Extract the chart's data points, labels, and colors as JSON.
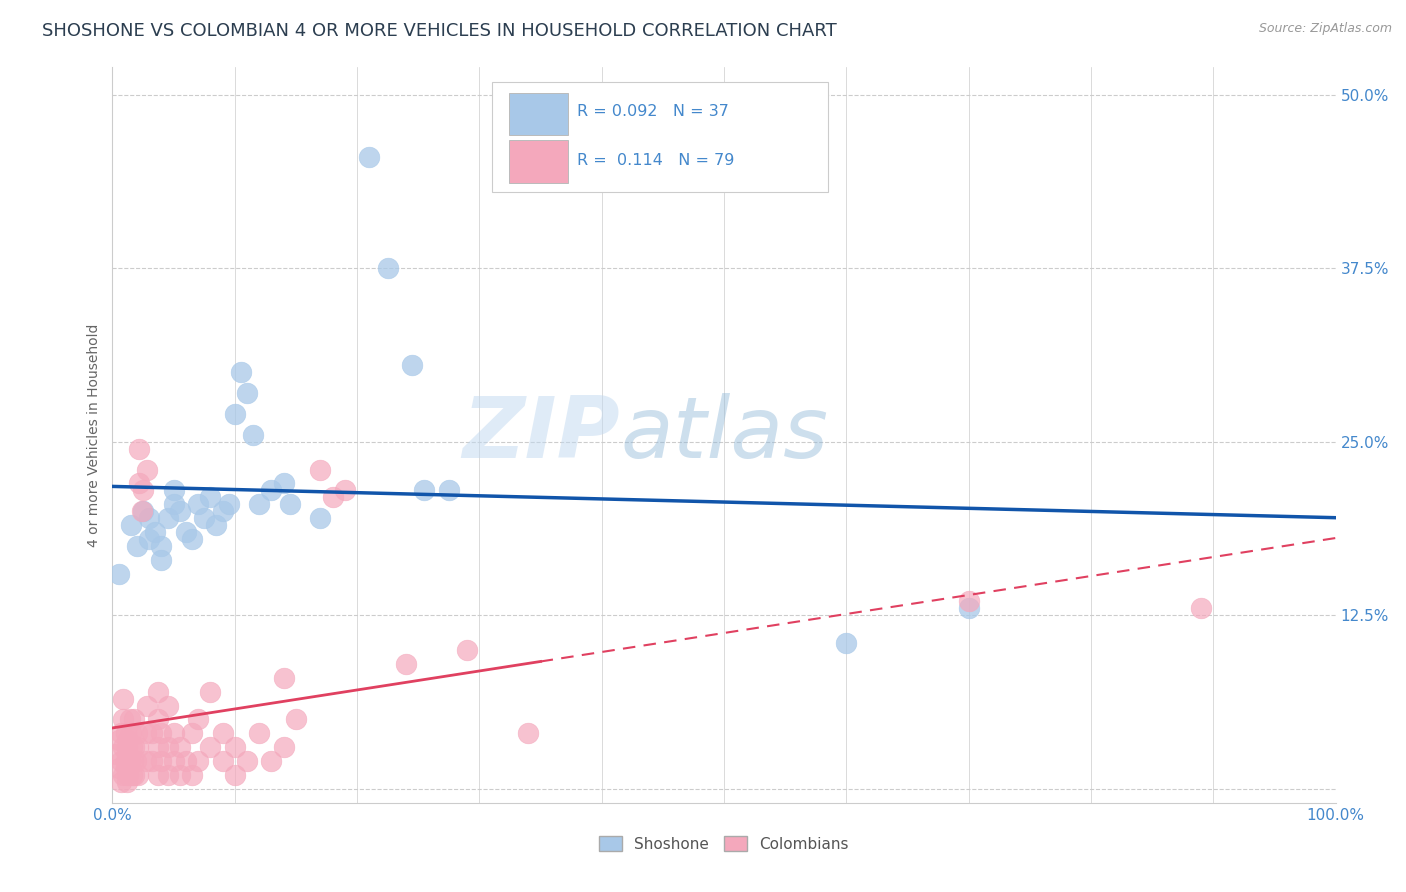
{
  "title": "SHOSHONE VS COLOMBIAN 4 OR MORE VEHICLES IN HOUSEHOLD CORRELATION CHART",
  "source": "Source: ZipAtlas.com",
  "ylabel": "4 or more Vehicles in Household",
  "xlabel": "",
  "xlim": [
    0.0,
    1.0
  ],
  "ylim": [
    -0.01,
    0.52
  ],
  "ytick_vals": [
    0.0,
    0.125,
    0.25,
    0.375,
    0.5
  ],
  "ytick_labels": [
    "",
    "12.5%",
    "25.0%",
    "37.5%",
    "50.0%"
  ],
  "xtick_vals": [
    0.0,
    0.1,
    0.2,
    0.3,
    0.4,
    0.5,
    0.6,
    0.7,
    0.8,
    0.9,
    1.0
  ],
  "xtick_labels": [
    "0.0%",
    "",
    "",
    "",
    "",
    "",
    "",
    "",
    "",
    "",
    "100.0%"
  ],
  "shoshone_color": "#a8c8e8",
  "colombian_color": "#f4a8bc",
  "line_shoshone_color": "#1155aa",
  "line_colombian_color": "#e04060",
  "tick_label_color": "#4488cc",
  "background_color": "#ffffff",
  "grid_color": "#cccccc",
  "watermark_zip": "ZIP",
  "watermark_atlas": "atlas",
  "shoshone_points": [
    [
      0.005,
      0.155
    ],
    [
      0.015,
      0.19
    ],
    [
      0.02,
      0.175
    ],
    [
      0.025,
      0.2
    ],
    [
      0.03,
      0.195
    ],
    [
      0.03,
      0.18
    ],
    [
      0.035,
      0.185
    ],
    [
      0.04,
      0.175
    ],
    [
      0.04,
      0.165
    ],
    [
      0.045,
      0.195
    ],
    [
      0.05,
      0.215
    ],
    [
      0.05,
      0.205
    ],
    [
      0.055,
      0.2
    ],
    [
      0.06,
      0.185
    ],
    [
      0.065,
      0.18
    ],
    [
      0.07,
      0.205
    ],
    [
      0.075,
      0.195
    ],
    [
      0.08,
      0.21
    ],
    [
      0.085,
      0.19
    ],
    [
      0.09,
      0.2
    ],
    [
      0.095,
      0.205
    ],
    [
      0.1,
      0.27
    ],
    [
      0.105,
      0.3
    ],
    [
      0.11,
      0.285
    ],
    [
      0.115,
      0.255
    ],
    [
      0.12,
      0.205
    ],
    [
      0.13,
      0.215
    ],
    [
      0.14,
      0.22
    ],
    [
      0.145,
      0.205
    ],
    [
      0.17,
      0.195
    ],
    [
      0.21,
      0.455
    ],
    [
      0.225,
      0.375
    ],
    [
      0.245,
      0.305
    ],
    [
      0.255,
      0.215
    ],
    [
      0.275,
      0.215
    ],
    [
      0.6,
      0.105
    ],
    [
      0.7,
      0.13
    ]
  ],
  "colombian_points": [
    [
      0.003,
      0.025
    ],
    [
      0.005,
      0.015
    ],
    [
      0.005,
      0.035
    ],
    [
      0.007,
      0.005
    ],
    [
      0.007,
      0.02
    ],
    [
      0.007,
      0.04
    ],
    [
      0.009,
      0.01
    ],
    [
      0.009,
      0.03
    ],
    [
      0.009,
      0.05
    ],
    [
      0.009,
      0.065
    ],
    [
      0.011,
      0.02
    ],
    [
      0.011,
      0.04
    ],
    [
      0.011,
      0.015
    ],
    [
      0.012,
      0.03
    ],
    [
      0.012,
      0.005
    ],
    [
      0.012,
      0.025
    ],
    [
      0.013,
      0.01
    ],
    [
      0.013,
      0.035
    ],
    [
      0.014,
      0.05
    ],
    [
      0.014,
      0.02
    ],
    [
      0.015,
      0.04
    ],
    [
      0.016,
      0.01
    ],
    [
      0.016,
      0.03
    ],
    [
      0.017,
      0.02
    ],
    [
      0.018,
      0.01
    ],
    [
      0.018,
      0.03
    ],
    [
      0.018,
      0.05
    ],
    [
      0.019,
      0.02
    ],
    [
      0.02,
      0.04
    ],
    [
      0.021,
      0.01
    ],
    [
      0.021,
      0.03
    ],
    [
      0.022,
      0.22
    ],
    [
      0.022,
      0.245
    ],
    [
      0.024,
      0.2
    ],
    [
      0.025,
      0.215
    ],
    [
      0.027,
      0.02
    ],
    [
      0.027,
      0.04
    ],
    [
      0.028,
      0.06
    ],
    [
      0.028,
      0.23
    ],
    [
      0.032,
      0.02
    ],
    [
      0.032,
      0.04
    ],
    [
      0.037,
      0.01
    ],
    [
      0.037,
      0.03
    ],
    [
      0.037,
      0.05
    ],
    [
      0.037,
      0.07
    ],
    [
      0.04,
      0.02
    ],
    [
      0.04,
      0.04
    ],
    [
      0.045,
      0.01
    ],
    [
      0.045,
      0.03
    ],
    [
      0.045,
      0.06
    ],
    [
      0.05,
      0.02
    ],
    [
      0.05,
      0.04
    ],
    [
      0.055,
      0.01
    ],
    [
      0.055,
      0.03
    ],
    [
      0.06,
      0.02
    ],
    [
      0.065,
      0.01
    ],
    [
      0.065,
      0.04
    ],
    [
      0.07,
      0.02
    ],
    [
      0.07,
      0.05
    ],
    [
      0.08,
      0.03
    ],
    [
      0.08,
      0.07
    ],
    [
      0.09,
      0.02
    ],
    [
      0.09,
      0.04
    ],
    [
      0.1,
      0.01
    ],
    [
      0.1,
      0.03
    ],
    [
      0.11,
      0.02
    ],
    [
      0.12,
      0.04
    ],
    [
      0.13,
      0.02
    ],
    [
      0.14,
      0.08
    ],
    [
      0.14,
      0.03
    ],
    [
      0.15,
      0.05
    ],
    [
      0.17,
      0.23
    ],
    [
      0.18,
      0.21
    ],
    [
      0.19,
      0.215
    ],
    [
      0.24,
      0.09
    ],
    [
      0.29,
      0.1
    ],
    [
      0.34,
      0.04
    ],
    [
      0.7,
      0.135
    ],
    [
      0.89,
      0.13
    ]
  ],
  "title_fontsize": 13,
  "axis_label_fontsize": 10,
  "tick_fontsize": 11
}
